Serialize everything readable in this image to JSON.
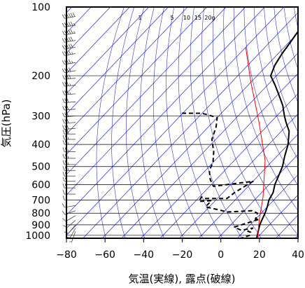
{
  "chart_data": {
    "type": "line",
    "xlabel": "気温(実線), 露点(破線)",
    "ylabel": "気圧(hPa)",
    "xlim": [
      -80,
      40
    ],
    "ylim": [
      1030,
      100
    ],
    "y_scale": "log",
    "x_ticks": [
      -80,
      -60,
      -40,
      -20,
      0,
      20,
      40
    ],
    "y_ticks": [
      100,
      200,
      300,
      400,
      500,
      600,
      700,
      800,
      900,
      1000
    ],
    "mixing_ratio_labels": [
      "1",
      "5",
      "10",
      "15",
      "20g"
    ],
    "colors": {
      "temperature": "#000000",
      "dewpoint": "#000000",
      "parcel": "#ff0000",
      "isotherm": "#0000ff",
      "adiabat": "#3333cc",
      "grid": "#000000"
    },
    "series": [
      {
        "points": [
          [
            -68.5,
            100
          ],
          [
            -68.5,
            105
          ],
          [
            -64,
            110
          ],
          [
            -61,
            120
          ],
          [
            -60.5,
            130
          ],
          [
            -59.5,
            140
          ],
          [
            -58,
            160
          ],
          [
            -56,
            180
          ],
          [
            -53,
            200
          ],
          [
            -46,
            220
          ],
          [
            -40,
            240
          ],
          [
            -32,
            270
          ],
          [
            -26,
            300
          ],
          [
            -22,
            320
          ],
          [
            -16,
            350
          ],
          [
            -10,
            400
          ],
          [
            -6,
            450
          ],
          [
            -2,
            500
          ],
          [
            3,
            600
          ],
          [
            6,
            650
          ],
          [
            7.5,
            700
          ],
          [
            10,
            750
          ],
          [
            12,
            800
          ],
          [
            13.5,
            850
          ],
          [
            15,
            900
          ],
          [
            20,
            1030
          ]
        ]
      },
      {
        "points": [
          [
            -80,
            290
          ],
          [
            -80,
            292
          ],
          [
            -70,
            292
          ],
          [
            -60,
            305
          ],
          [
            -56,
            335
          ],
          [
            -52,
            380
          ],
          [
            -45,
            430
          ],
          [
            -40,
            480
          ],
          [
            -38,
            520
          ],
          [
            -33,
            570
          ],
          [
            -28,
            610
          ],
          [
            -10,
            580
          ],
          [
            -14,
            650
          ],
          [
            -15,
            690
          ],
          [
            -26,
            690
          ],
          [
            -29,
            680
          ],
          [
            -28,
            710
          ],
          [
            -22,
            705
          ],
          [
            -22,
            750
          ],
          [
            -8,
            790
          ],
          [
            4,
            780
          ],
          [
            8,
            800
          ],
          [
            10,
            850
          ],
          [
            12,
            850
          ],
          [
            3,
            920
          ],
          [
            8,
            950
          ],
          [
            13,
            930
          ],
          [
            12,
            960
          ],
          [
            14,
            970
          ],
          [
            15,
            1000
          ],
          [
            12,
            1030
          ]
        ]
      },
      {
        "points": [
          [
            -80,
            150
          ],
          [
            -61,
            210
          ],
          [
            -36,
            320
          ],
          [
            -14,
            470
          ],
          [
            3,
            680
          ],
          [
            12,
            850
          ],
          [
            20,
            1020
          ]
        ]
      }
    ],
    "wind_barbs": [
      {
        "p": 110,
        "dir": 260,
        "kt": 60
      },
      {
        "p": 120,
        "dir": 260,
        "kt": 55
      },
      {
        "p": 130,
        "dir": 260,
        "kt": 55
      },
      {
        "p": 140,
        "dir": 260,
        "kt": 50
      },
      {
        "p": 150,
        "dir": 260,
        "kt": 50
      },
      {
        "p": 160,
        "dir": 260,
        "kt": 45
      },
      {
        "p": 175,
        "dir": 260,
        "kt": 45
      },
      {
        "p": 190,
        "dir": 260,
        "kt": 40
      },
      {
        "p": 205,
        "dir": 265,
        "kt": 40
      },
      {
        "p": 220,
        "dir": 265,
        "kt": 35
      },
      {
        "p": 240,
        "dir": 265,
        "kt": 35
      },
      {
        "p": 260,
        "dir": 265,
        "kt": 30
      },
      {
        "p": 280,
        "dir": 265,
        "kt": 30
      },
      {
        "p": 300,
        "dir": 265,
        "kt": 30
      },
      {
        "p": 320,
        "dir": 265,
        "kt": 30
      },
      {
        "p": 340,
        "dir": 265,
        "kt": 30
      },
      {
        "p": 360,
        "dir": 270,
        "kt": 30
      },
      {
        "p": 380,
        "dir": 270,
        "kt": 25
      },
      {
        "p": 400,
        "dir": 270,
        "kt": 25
      },
      {
        "p": 430,
        "dir": 270,
        "kt": 25
      },
      {
        "p": 460,
        "dir": 270,
        "kt": 25
      },
      {
        "p": 490,
        "dir": 270,
        "kt": 25
      },
      {
        "p": 520,
        "dir": 270,
        "kt": 25
      },
      {
        "p": 550,
        "dir": 270,
        "kt": 20
      },
      {
        "p": 580,
        "dir": 270,
        "kt": 20
      },
      {
        "p": 620,
        "dir": 270,
        "kt": 20
      },
      {
        "p": 660,
        "dir": 270,
        "kt": 15
      },
      {
        "p": 700,
        "dir": 270,
        "kt": 15
      },
      {
        "p": 740,
        "dir": 260,
        "kt": 15
      },
      {
        "p": 780,
        "dir": 250,
        "kt": 10
      },
      {
        "p": 820,
        "dir": 240,
        "kt": 10
      },
      {
        "p": 860,
        "dir": 230,
        "kt": 10
      },
      {
        "p": 900,
        "dir": 220,
        "kt": 10
      },
      {
        "p": 930,
        "dir": 210,
        "kt": 10
      },
      {
        "p": 960,
        "dir": 200,
        "kt": 5
      }
    ]
  }
}
